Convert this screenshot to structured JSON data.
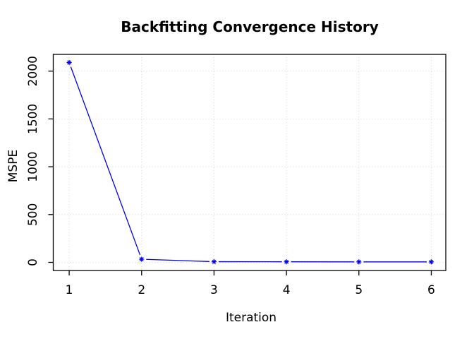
{
  "figure": {
    "background": "#FFFFFF"
  },
  "chart_data": {
    "type": "line",
    "draw_style": "points-and-lines",
    "title": "Backfitting Convergence History",
    "xlabel": "Iteration",
    "ylabel": "MSPE",
    "x": [
      1,
      2,
      3,
      4,
      5,
      6
    ],
    "series": [
      {
        "name": "MSPE",
        "values": [
          2090,
          33,
          7,
          6,
          5,
          5
        ]
      }
    ],
    "xticks": [
      "1",
      "2",
      "3",
      "4",
      "5",
      "6"
    ],
    "xtick_values": [
      1,
      2,
      3,
      4,
      5,
      6
    ],
    "yticks": [
      "0",
      "500",
      "1000",
      "1500",
      "2000"
    ],
    "ytick_values": [
      0,
      500,
      1000,
      1500,
      2000
    ],
    "xlim": [
      0.78,
      6.2
    ],
    "ylim": [
      -85,
      2175
    ],
    "grid": true,
    "grid_style": "dotted",
    "grid_color": "#D8D8D8",
    "axis_color": "#000000",
    "line_color": "#0000EE",
    "marker": "asterisk",
    "legend": "none"
  }
}
